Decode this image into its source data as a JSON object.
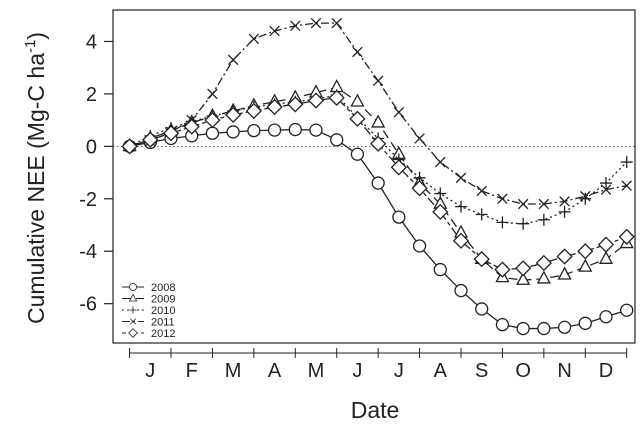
{
  "chart_data": {
    "type": "line",
    "xlabel": "Date",
    "ylabel": "Cumulative NEE (Mg-C ha",
    "ylabel_sup": "-1",
    "ylabel_close": ")",
    "month_ticks": [
      "J",
      "F",
      "M",
      "A",
      "M",
      "J",
      "J",
      "A",
      "S",
      "O",
      "N",
      "D"
    ],
    "y_ticks": [
      "4",
      "2",
      "0",
      "-2",
      "-4",
      "-6"
    ],
    "ylim": [
      -7.5,
      5.2
    ],
    "zero_reference_line": "dotted",
    "legend_position": "bottom-left",
    "x": [
      0,
      0.5,
      1,
      1.5,
      2,
      2.5,
      3,
      3.5,
      4,
      4.5,
      5,
      5.5,
      6,
      6.5,
      7,
      7.5,
      8,
      8.5,
      9,
      9.5,
      10,
      10.5,
      11,
      11.5,
      12
    ],
    "series": [
      {
        "name": "2008",
        "marker": "circle",
        "dash": "solid",
        "values": [
          0,
          0.15,
          0.3,
          0.4,
          0.5,
          0.55,
          0.6,
          0.62,
          0.64,
          0.62,
          0.25,
          -0.3,
          -1.4,
          -2.7,
          -3.8,
          -4.7,
          -5.5,
          -6.2,
          -6.8,
          -6.95,
          -6.95,
          -6.9,
          -6.75,
          -6.5,
          -6.25
        ]
      },
      {
        "name": "2009",
        "marker": "triangle",
        "dash": "longdash",
        "values": [
          0,
          0.3,
          0.6,
          0.9,
          1.15,
          1.35,
          1.55,
          1.7,
          1.85,
          2.05,
          2.25,
          1.7,
          0.9,
          -0.3,
          -1.4,
          -2.2,
          -3.3,
          -4.3,
          -5.0,
          -5.1,
          -5.05,
          -4.9,
          -4.6,
          -4.3,
          -3.7
        ]
      },
      {
        "name": "2010",
        "marker": "plus",
        "dash": "dotted",
        "values": [
          0,
          0.4,
          0.7,
          0.95,
          1.15,
          1.35,
          1.5,
          1.6,
          1.7,
          1.8,
          1.95,
          1.1,
          0.3,
          -0.5,
          -1.2,
          -1.8,
          -2.3,
          -2.6,
          -2.9,
          -2.95,
          -2.8,
          -2.5,
          -2.0,
          -1.4,
          -0.6
        ]
      },
      {
        "name": "2011",
        "marker": "x",
        "dash": "dashdot",
        "values": [
          0,
          0.2,
          0.55,
          1.0,
          2.0,
          3.3,
          4.1,
          4.4,
          4.6,
          4.7,
          4.7,
          3.6,
          2.5,
          1.3,
          0.3,
          -0.6,
          -1.2,
          -1.7,
          -2.0,
          -2.2,
          -2.2,
          -2.1,
          -1.9,
          -1.65,
          -1.5
        ]
      },
      {
        "name": "2012",
        "marker": "diamond",
        "dash": "twodash",
        "values": [
          0,
          0.25,
          0.5,
          0.75,
          1.0,
          1.2,
          1.35,
          1.5,
          1.6,
          1.75,
          1.85,
          1.05,
          0.1,
          -0.8,
          -1.6,
          -2.5,
          -3.6,
          -4.3,
          -4.7,
          -4.65,
          -4.45,
          -4.2,
          -4.0,
          -3.75,
          -3.45
        ]
      }
    ]
  }
}
